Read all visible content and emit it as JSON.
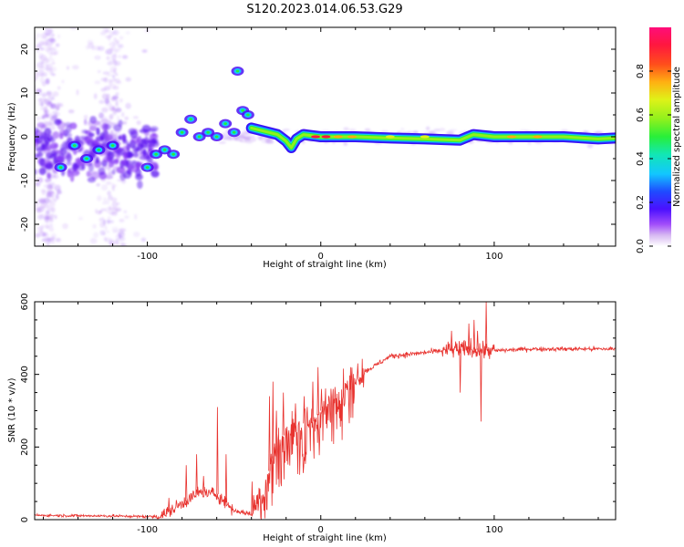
{
  "figure": {
    "title": "S120.2023.014.06.53.G29"
  },
  "chart_data": [
    {
      "type": "heatmap",
      "xlabel": "Height of straight line (km)",
      "ylabel": "Frequency (Hz)",
      "xlim": [
        -165,
        170
      ],
      "ylim": [
        -25,
        25
      ],
      "x_ticks": [
        -100,
        0,
        100
      ],
      "y_ticks": [
        -20,
        -10,
        0,
        10,
        20
      ],
      "grid": false,
      "colorbar": {
        "label": "Normalized spectral amplitude",
        "range": [
          0.0,
          1.0
        ],
        "ticks": [
          0.0,
          0.2,
          0.4,
          0.6,
          0.8
        ],
        "tick_labels": [
          "0.0",
          "0.2",
          "0.4",
          "0.6",
          "0.8"
        ]
      },
      "ridge": [
        [
          -40,
          2
        ],
        [
          -35,
          1.5
        ],
        [
          -30,
          1
        ],
        [
          -25,
          0.5
        ],
        [
          -20,
          -1
        ],
        [
          -17,
          -2.5
        ],
        [
          -14,
          -0.5
        ],
        [
          -10,
          0.5
        ],
        [
          0,
          0
        ],
        [
          20,
          0
        ],
        [
          40,
          -0.3
        ],
        [
          60,
          -0.5
        ],
        [
          80,
          -0.8
        ],
        [
          88,
          0.5
        ],
        [
          100,
          0
        ],
        [
          120,
          0
        ],
        [
          140,
          0
        ],
        [
          160,
          -0.5
        ],
        [
          170,
          -0.3
        ]
      ],
      "blobs": [
        [
          -135,
          -5
        ],
        [
          -142,
          -2
        ],
        [
          -128,
          -3
        ],
        [
          -150,
          -7
        ],
        [
          -120,
          -2
        ],
        [
          -100,
          -7
        ],
        [
          -95,
          -4
        ],
        [
          -90,
          -3
        ],
        [
          -85,
          -4
        ],
        [
          -80,
          1
        ],
        [
          -75,
          4
        ],
        [
          -70,
          0
        ],
        [
          -65,
          1
        ],
        [
          -60,
          0
        ],
        [
          -55,
          3
        ],
        [
          -50,
          1
        ],
        [
          -48,
          15
        ],
        [
          -45,
          6
        ],
        [
          -42,
          5
        ]
      ],
      "cloud_x_range": [
        -165,
        -100
      ],
      "cloud_y_range": [
        -25,
        25
      ]
    },
    {
      "type": "line",
      "xlabel": "Height of straight line (km)",
      "ylabel": "SNR (10 * v/v)",
      "xlim": [
        -165,
        170
      ],
      "ylim": [
        0,
        600
      ],
      "x_ticks": [
        -100,
        0,
        100
      ],
      "y_ticks": [
        0,
        200,
        400,
        600
      ],
      "grid": false,
      "color": "#e8332f",
      "trend": [
        [
          -165,
          12
        ],
        [
          -120,
          10
        ],
        [
          -95,
          8
        ],
        [
          -88,
          20
        ],
        [
          -80,
          45
        ],
        [
          -70,
          75
        ],
        [
          -60,
          70
        ],
        [
          -50,
          25
        ],
        [
          -40,
          15
        ],
        [
          -32,
          100
        ],
        [
          -25,
          220
        ],
        [
          -15,
          260
        ],
        [
          -5,
          270
        ],
        [
          0,
          300
        ],
        [
          5,
          330
        ],
        [
          10,
          350
        ],
        [
          15,
          380
        ],
        [
          20,
          395
        ],
        [
          30,
          420
        ],
        [
          40,
          450
        ],
        [
          60,
          460
        ],
        [
          80,
          470
        ],
        [
          100,
          465
        ],
        [
          120,
          470
        ],
        [
          140,
          470
        ],
        [
          170,
          470
        ]
      ],
      "spikes": [
        [
          -88,
          60
        ],
        [
          -78,
          150
        ],
        [
          -72,
          180
        ],
        [
          -68,
          120
        ],
        [
          -60,
          310
        ],
        [
          -55,
          180
        ],
        [
          -40,
          105
        ],
        [
          -30,
          340
        ],
        [
          -28,
          380
        ],
        [
          -26,
          300
        ],
        [
          -22,
          350
        ],
        [
          -15,
          320
        ],
        [
          -10,
          340
        ],
        [
          -5,
          380
        ],
        [
          -2,
          420
        ],
        [
          0,
          360
        ],
        [
          75,
          520
        ],
        [
          85,
          540
        ],
        [
          88,
          550
        ],
        [
          90,
          520
        ],
        [
          95,
          600
        ],
        [
          92,
          270
        ],
        [
          80,
          350
        ]
      ]
    }
  ]
}
